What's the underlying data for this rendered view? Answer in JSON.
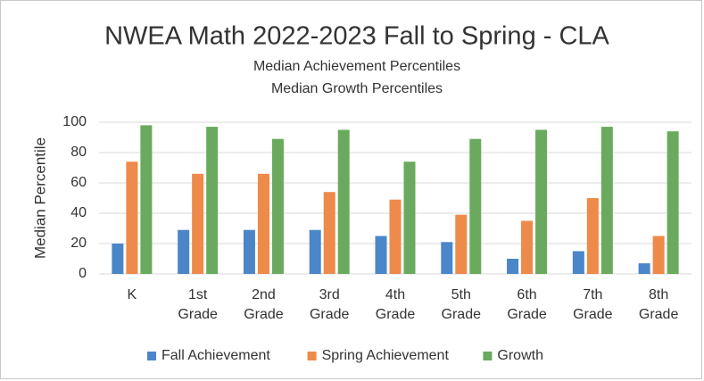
{
  "chart_data": {
    "type": "bar",
    "title": "NWEA Math 2022-2023 Fall to Spring - CLA",
    "subtitle": [
      "Median Achievement Percentiles",
      "Median Growth Percentiles"
    ],
    "y_label": "Median Percentile",
    "categories": [
      "K",
      "1st Grade",
      "2nd Grade",
      "3rd Grade",
      "4th Grade",
      "5th Grade",
      "6th Grade",
      "7th Grade",
      "8th Grade"
    ],
    "series": [
      {
        "name": "Fall Achievement",
        "color": "#4a86c8",
        "values": [
          20,
          29,
          29,
          29,
          25,
          21,
          10,
          15,
          7
        ]
      },
      {
        "name": "Spring Achievement",
        "color": "#ee8a4a",
        "values": [
          74,
          66,
          66,
          54,
          49,
          39,
          35,
          50,
          25
        ]
      },
      {
        "name": "Growth",
        "color": "#6aaa5e",
        "values": [
          98,
          97,
          89,
          95,
          74,
          89,
          95,
          97,
          94
        ]
      }
    ],
    "ylim": [
      0,
      100
    ],
    "yticks": [
      0,
      20,
      40,
      60,
      80,
      100
    ],
    "grid": true,
    "legend": "bottom"
  }
}
